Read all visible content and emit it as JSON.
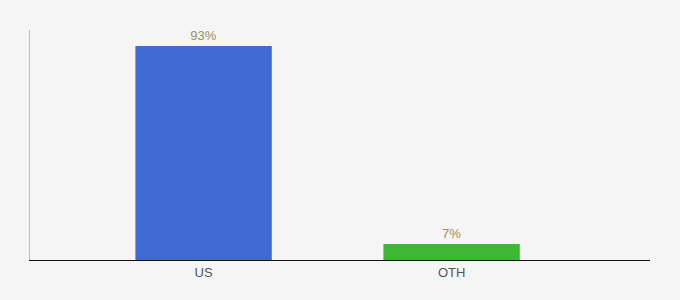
{
  "chart_data": {
    "type": "bar",
    "categories": [
      "US",
      "OTH"
    ],
    "values": [
      93,
      7
    ],
    "value_labels": [
      "93%",
      "7%"
    ],
    "data_labels": true,
    "colors": [
      "#4169d4",
      "#3cb832"
    ],
    "ylim": [
      0,
      100
    ],
    "tick_labels": "x",
    "grid": false
  }
}
